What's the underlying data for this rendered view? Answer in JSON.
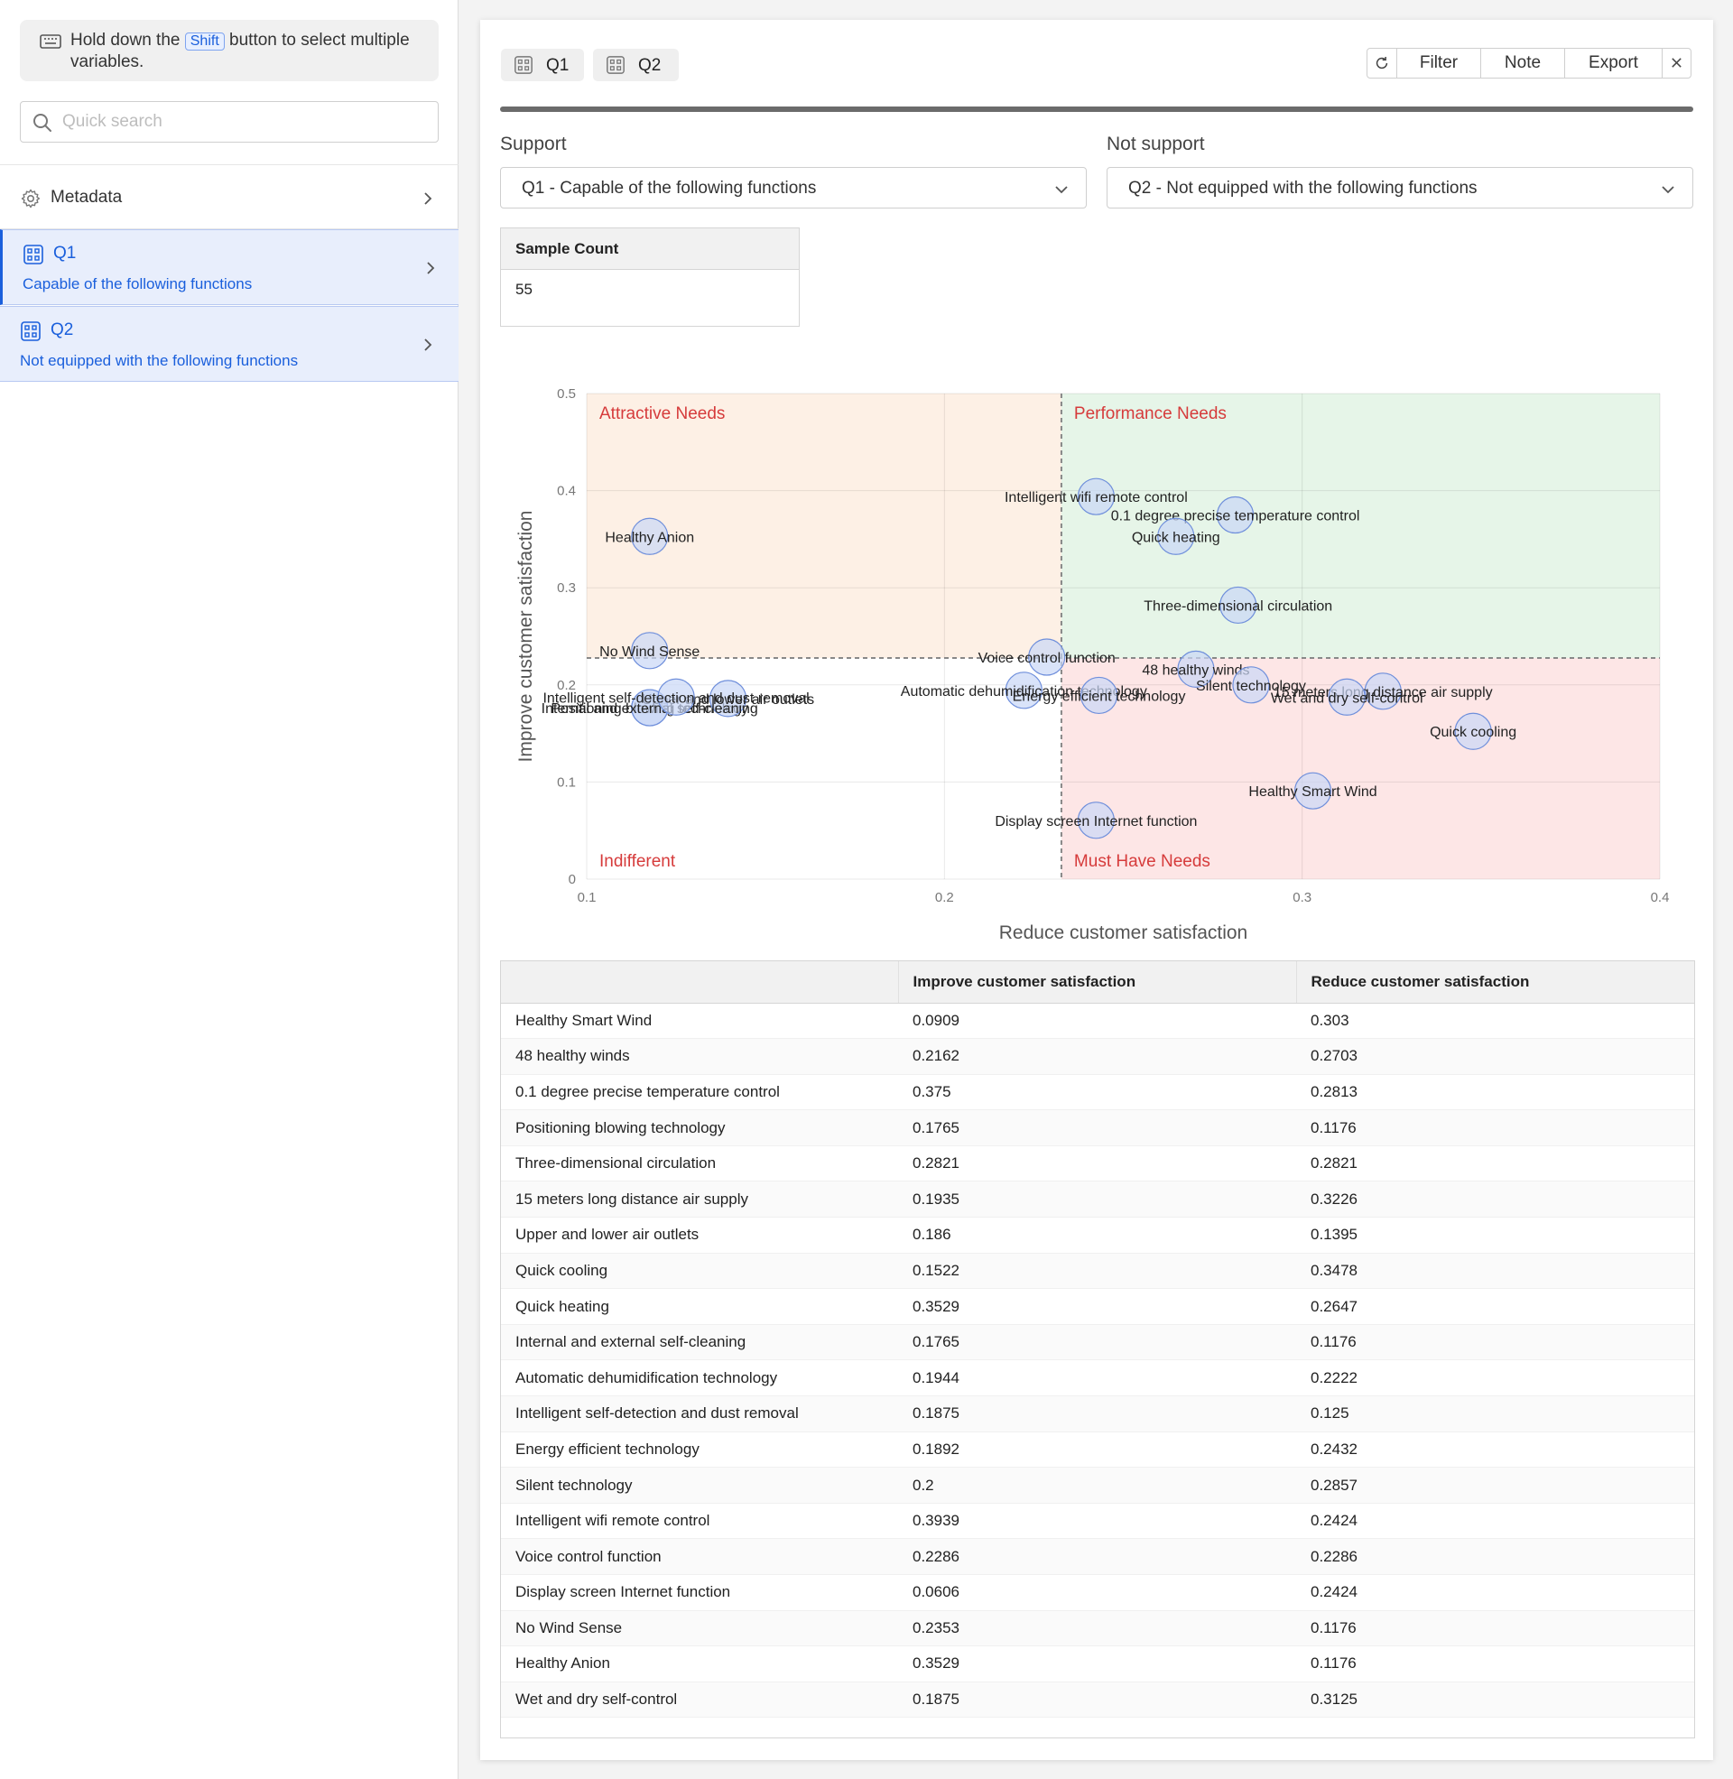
{
  "sidebar": {
    "hint_before": "Hold down the",
    "hint_key": "Shift",
    "hint_after": "button to select multiple variables.",
    "search_placeholder": "Quick search",
    "metadata_label": "Metadata",
    "questions": [
      {
        "name": "Q1",
        "description": "Capable of the following functions"
      },
      {
        "name": "Q2",
        "description": "Not equipped with the following functions"
      }
    ]
  },
  "tabs": [
    {
      "label": "Q1"
    },
    {
      "label": "Q2"
    }
  ],
  "toolbar": {
    "filter": "Filter",
    "note": "Note",
    "export": "Export"
  },
  "support": {
    "label": "Support",
    "value": "Q1 - Capable of the following functions"
  },
  "not_support": {
    "label": "Not support",
    "value": "Q2 - Not equipped with the following functions"
  },
  "sample": {
    "header": "Sample Count",
    "value": "55"
  },
  "colors": {
    "accent": "#1a5fdc",
    "quadrant_attractive": "#fdf0e5",
    "quadrant_performance": "#e6f5e8",
    "quadrant_must_have": "#fde6e6",
    "quadrant_label": "#d63b3b",
    "point_fill": "#c9d7f7",
    "point_stroke": "#6f8fdb"
  },
  "table": {
    "headers": [
      "",
      "Improve customer satisfaction",
      "Reduce customer satisfaction"
    ],
    "rows": [
      [
        "Healthy Smart Wind",
        "0.0909",
        "0.303"
      ],
      [
        "48 healthy winds",
        "0.2162",
        "0.2703"
      ],
      [
        "0.1 degree precise temperature control",
        "0.375",
        "0.2813"
      ],
      [
        "Positioning blowing technology",
        "0.1765",
        "0.1176"
      ],
      [
        "Three-dimensional circulation",
        "0.2821",
        "0.2821"
      ],
      [
        "15 meters long distance air supply",
        "0.1935",
        "0.3226"
      ],
      [
        "Upper and lower air outlets",
        "0.186",
        "0.1395"
      ],
      [
        "Quick cooling",
        "0.1522",
        "0.3478"
      ],
      [
        "Quick heating",
        "0.3529",
        "0.2647"
      ],
      [
        "Internal and external self-cleaning",
        "0.1765",
        "0.1176"
      ],
      [
        "Automatic dehumidification technology",
        "0.1944",
        "0.2222"
      ],
      [
        "Intelligent self-detection and dust removal",
        "0.1875",
        "0.125"
      ],
      [
        "Energy efficient technology",
        "0.1892",
        "0.2432"
      ],
      [
        "Silent technology",
        "0.2",
        "0.2857"
      ],
      [
        "Intelligent wifi remote control",
        "0.3939",
        "0.2424"
      ],
      [
        "Voice control function",
        "0.2286",
        "0.2286"
      ],
      [
        "Display screen Internet function",
        "0.0606",
        "0.2424"
      ],
      [
        "No Wind Sense",
        "0.2353",
        "0.1176"
      ],
      [
        "Healthy Anion",
        "0.3529",
        "0.1176"
      ],
      [
        "Wet and dry self-control",
        "0.1875",
        "0.3125"
      ]
    ]
  },
  "chart_data": {
    "type": "scatter",
    "xlabel": "Reduce customer satisfaction",
    "ylabel": "Improve customer satisfaction",
    "xlim": [
      0.1,
      0.4
    ],
    "ylim": [
      0,
      0.5
    ],
    "xticks": [
      "0.1",
      "0.2",
      "0.3",
      "0.4"
    ],
    "yticks": [
      "0",
      "0.1",
      "0.2",
      "0.3",
      "0.4",
      "0.5"
    ],
    "x_divider": 0.2327,
    "y_divider": 0.2277,
    "grid": true,
    "quadrants": [
      {
        "name": "Attractive Needs",
        "position": "top-left"
      },
      {
        "name": "Performance Needs",
        "position": "top-right"
      },
      {
        "name": "Indifferent",
        "position": "bottom-left"
      },
      {
        "name": "Must Have Needs",
        "position": "bottom-right"
      }
    ],
    "points": [
      {
        "label": "Healthy Smart Wind",
        "x": 0.303,
        "y": 0.0909
      },
      {
        "label": "48 healthy winds",
        "x": 0.2703,
        "y": 0.2162
      },
      {
        "label": "0.1 degree precise temperature control",
        "x": 0.2813,
        "y": 0.375
      },
      {
        "label": "Positioning blowing technology",
        "x": 0.1176,
        "y": 0.1765
      },
      {
        "label": "Three-dimensional circulation",
        "x": 0.2821,
        "y": 0.2821
      },
      {
        "label": "15 meters long distance air supply",
        "x": 0.3226,
        "y": 0.1935
      },
      {
        "label": "Upper and lower air outlets",
        "x": 0.1395,
        "y": 0.186
      },
      {
        "label": "Quick cooling",
        "x": 0.3478,
        "y": 0.1522
      },
      {
        "label": "Quick heating",
        "x": 0.2647,
        "y": 0.3529
      },
      {
        "label": "Internal and external self-cleaning",
        "x": 0.1176,
        "y": 0.1765
      },
      {
        "label": "Automatic dehumidification technology",
        "x": 0.2222,
        "y": 0.1944
      },
      {
        "label": "Intelligent self-detection and dust removal",
        "x": 0.125,
        "y": 0.1875
      },
      {
        "label": "Energy efficient technology",
        "x": 0.2432,
        "y": 0.1892
      },
      {
        "label": "Silent technology",
        "x": 0.2857,
        "y": 0.2
      },
      {
        "label": "Intelligent wifi remote control",
        "x": 0.2424,
        "y": 0.3939
      },
      {
        "label": "Voice control function",
        "x": 0.2286,
        "y": 0.2286
      },
      {
        "label": "Display screen Internet function",
        "x": 0.2424,
        "y": 0.0606
      },
      {
        "label": "No Wind Sense",
        "x": 0.1176,
        "y": 0.2353
      },
      {
        "label": "Healthy Anion",
        "x": 0.1176,
        "y": 0.3529
      },
      {
        "label": "Wet and dry self-control",
        "x": 0.3125,
        "y": 0.1875
      }
    ]
  }
}
